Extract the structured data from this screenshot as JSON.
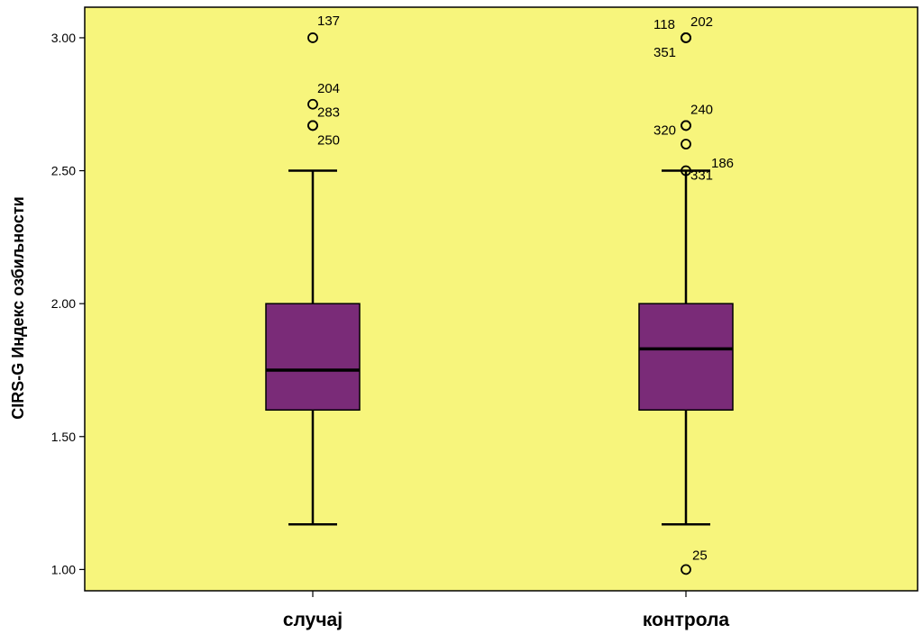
{
  "chart_data": {
    "type": "boxplot",
    "title": "",
    "xlabel": "",
    "ylabel": "CIRS-G Индекс озбиљности",
    "ylim": [
      0.92,
      3.115
    ],
    "yticks": [
      1.0,
      1.5,
      2.0,
      2.5,
      3.0
    ],
    "ytick_labels": [
      "1.00",
      "1.50",
      "2.00",
      "2.50",
      "3.00"
    ],
    "grid": false,
    "colors": {
      "plot_background": "#f7f57c",
      "box_fill": "#7a2b78",
      "stroke": "#000000"
    },
    "categories": [
      "случај",
      "контрола"
    ],
    "boxes": [
      {
        "category": "случај",
        "whisker_low": 1.17,
        "q1": 1.6,
        "median": 1.75,
        "q3": 2.0,
        "whisker_high": 2.5,
        "outliers": [
          {
            "value": 3.0,
            "label": "137"
          },
          {
            "value": 2.75,
            "label": "204"
          },
          {
            "value": 2.67,
            "label": "283"
          },
          {
            "value": 2.67,
            "label": "250"
          }
        ]
      },
      {
        "category": "контрола",
        "whisker_low": 1.17,
        "q1": 1.6,
        "median": 1.83,
        "q3": 2.0,
        "whisker_high": 2.5,
        "outliers": [
          {
            "value": 3.0,
            "label": "118"
          },
          {
            "value": 3.0,
            "label": "202"
          },
          {
            "value": 3.0,
            "label": "351"
          },
          {
            "value": 2.67,
            "label": "240"
          },
          {
            "value": 2.67,
            "label": "320"
          },
          {
            "value": 2.6,
            "label": "186"
          },
          {
            "value": 2.5,
            "label": "331"
          },
          {
            "value": 1.0,
            "label": "25"
          }
        ]
      }
    ]
  }
}
